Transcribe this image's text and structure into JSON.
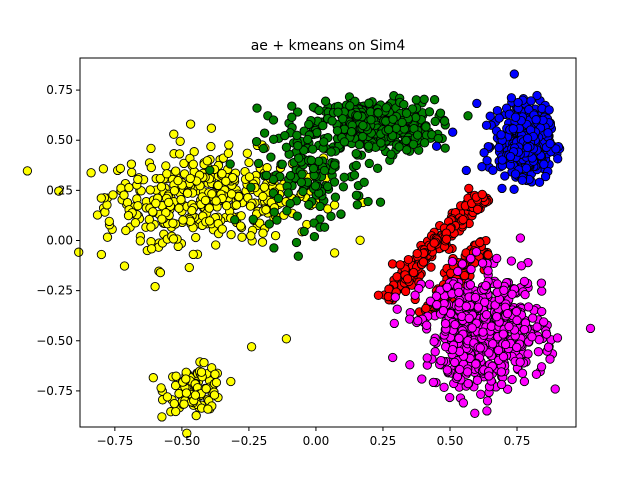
{
  "chart_data": {
    "type": "scatter",
    "title": "ae + kmeans on Sim4",
    "xlabel": "",
    "ylabel": "",
    "xlim": [
      -0.88,
      0.97
    ],
    "ylim": [
      -0.93,
      0.91
    ],
    "xticks": [
      -0.75,
      -0.5,
      -0.25,
      0.0,
      0.25,
      0.5,
      0.75
    ],
    "yticks": [
      -0.75,
      -0.5,
      -0.25,
      0.0,
      0.25,
      0.5,
      0.75
    ],
    "xtick_labels": [
      "−0.75",
      "−0.50",
      "−0.25",
      "0.00",
      "0.25",
      "0.50",
      "0.75"
    ],
    "ytick_labels": [
      "−0.75",
      "−0.50",
      "−0.25",
      "0.00",
      "0.25",
      "0.50",
      "0.75"
    ],
    "grid": false,
    "marker_edge_color": "#000000",
    "clusters": [
      {
        "color": "#ffff00",
        "blobs": [
          {
            "cx": -0.38,
            "cy": 0.22,
            "sx": 0.2,
            "sy": 0.11,
            "n": 380
          },
          {
            "cx": -0.62,
            "cy": 0.05,
            "sx": 0.1,
            "sy": 0.12,
            "n": 40
          },
          {
            "cx": -0.45,
            "cy": -0.74,
            "sx": 0.055,
            "sy": 0.055,
            "n": 110
          }
        ],
        "points": [
          [
            -0.8,
            -0.07
          ],
          [
            -0.6,
            -0.23
          ],
          [
            -0.24,
            -0.53
          ],
          [
            -0.11,
            -0.49
          ],
          [
            -0.58,
            -0.16
          ],
          [
            -0.53,
            0.53
          ],
          [
            -0.39,
            0.56
          ]
        ]
      },
      {
        "color": "#008000",
        "blobs": [
          {
            "cx": 0.22,
            "cy": 0.57,
            "sx": 0.11,
            "sy": 0.065,
            "n": 420
          },
          {
            "cx": -0.02,
            "cy": 0.33,
            "sx": 0.1,
            "sy": 0.13,
            "n": 150
          }
        ],
        "points": [
          [
            -0.09,
            0.67
          ],
          [
            -0.22,
            0.66
          ],
          [
            0.18,
            0.29
          ],
          [
            0.23,
            0.36
          ],
          [
            -0.14,
            0.21
          ],
          [
            0.28,
            0.43
          ]
        ]
      },
      {
        "color": "#0000ff",
        "blobs": [
          {
            "cx": 0.79,
            "cy": 0.49,
            "sx": 0.04,
            "sy": 0.08,
            "n": 520
          },
          {
            "cx": 0.71,
            "cy": 0.5,
            "sx": 0.045,
            "sy": 0.1,
            "n": 60
          }
        ],
        "points": [
          [
            0.74,
            0.83
          ],
          [
            0.65,
            0.62
          ],
          [
            0.51,
            0.54
          ],
          [
            0.45,
            0.47
          ],
          [
            0.66,
            0.35
          ],
          [
            0.77,
            0.3
          ]
        ]
      },
      {
        "color": "#ff0000",
        "lines": [
          {
            "x0": 0.27,
            "y0": -0.28,
            "x1": 0.62,
            "y1": 0.23,
            "spread": 0.02,
            "n": 230
          },
          {
            "x0": 0.42,
            "y0": -0.35,
            "x1": 0.62,
            "y1": -0.02,
            "spread": 0.025,
            "n": 120
          }
        ],
        "points": [
          [
            0.62,
            0.23
          ],
          [
            0.57,
            0.26
          ],
          [
            0.27,
            -0.28
          ]
        ]
      },
      {
        "color": "#ff00ff",
        "blobs": [
          {
            "cx": 0.63,
            "cy": -0.45,
            "sx": 0.11,
            "sy": 0.14,
            "n": 620
          }
        ],
        "points": [
          [
            0.35,
            -0.62
          ],
          [
            0.55,
            -0.81
          ],
          [
            0.64,
            -0.8
          ],
          [
            0.78,
            -0.27
          ],
          [
            0.38,
            -0.4
          ]
        ]
      }
    ]
  }
}
